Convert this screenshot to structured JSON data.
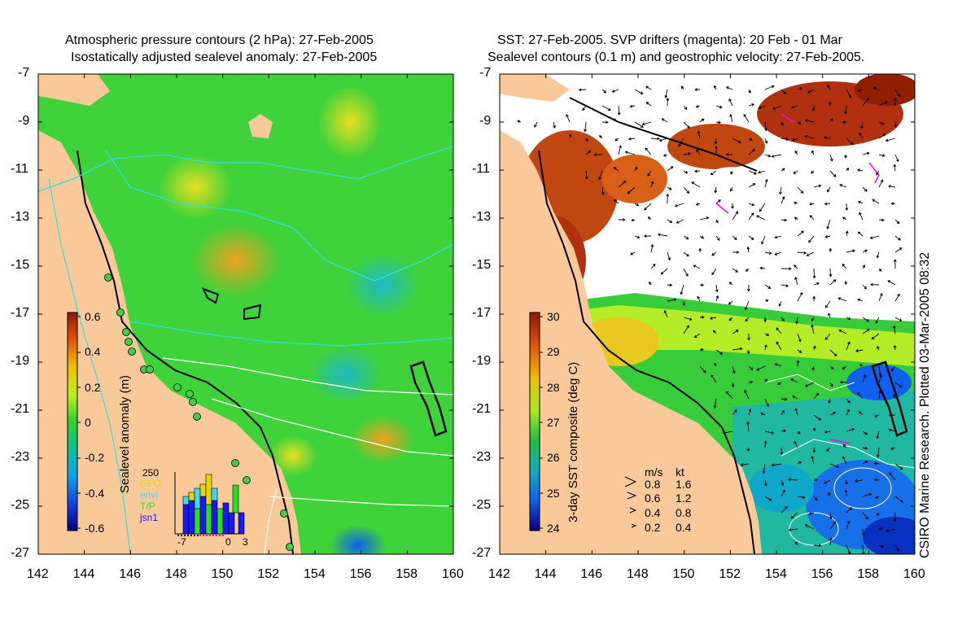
{
  "left_panel": {
    "title_line1": "Atmospheric pressure contours (2 hPa): 27-Feb-2005",
    "title_line2": "Isostatically adjusted sealevel anomaly: 27-Feb-2005",
    "colorbar_label": "Sealevel anomaly (m)",
    "colorbar_ticks": [
      "0.6",
      "0.4",
      "0.2",
      "0",
      "-0.2",
      "-0.4",
      "-0.6"
    ],
    "inset": {
      "count_label": "250",
      "legend": [
        {
          "name": "GFO",
          "color": "#e8d800"
        },
        {
          "name": "envi",
          "color": "#40d8ff"
        },
        {
          "name": "T/P",
          "color": "#28e028"
        },
        {
          "name": "jsn1",
          "color": "#1818f0"
        }
      ],
      "x_ticks": [
        "-7",
        "0",
        "3"
      ]
    }
  },
  "right_panel": {
    "title_line1": "SST: 27-Feb-2005. SVP drifters (magenta): 20 Feb - 01 Mar",
    "title_line2": "Sealevel contours (0.1 m) and geostrophic velocity: 27-Feb-2005.",
    "colorbar_label": "3-day SST composite (deg C)",
    "colorbar_ticks": [
      "30",
      "29",
      "28",
      "27",
      "26",
      "25",
      "24"
    ],
    "velocity_legend": {
      "header_ms": "m/s",
      "header_kt": "kt",
      "rows": [
        {
          "ms": "0.8",
          "kt": "1.6"
        },
        {
          "ms": "0.6",
          "kt": "1.2"
        },
        {
          "ms": "0.4",
          "kt": "0.8"
        },
        {
          "ms": "0.2",
          "kt": "0.4"
        }
      ]
    },
    "credit": "CSIRO Marine Research. Plotted 03-Mar-2005 08:32"
  },
  "axes": {
    "lon_ticks": [
      "142",
      "144",
      "146",
      "148",
      "150",
      "152",
      "154",
      "156",
      "158",
      "160"
    ],
    "lat_ticks": [
      "-7",
      "-9",
      "-11",
      "-13",
      "-15",
      "-17",
      "-19",
      "-21",
      "-23",
      "-25",
      "-27"
    ]
  },
  "colors": {
    "land": "#f9c99a",
    "sea_base_left": "#2fcf2a",
    "cloud": "#ffffff"
  }
}
